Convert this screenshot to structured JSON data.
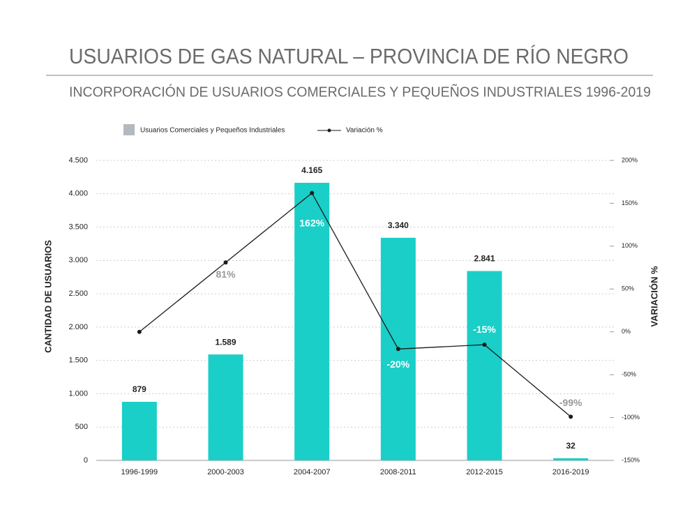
{
  "chart_data": {
    "type": "bar-line",
    "title": "USUARIOS DE GAS NATURAL  – PROVINCIA DE RÍO NEGRO",
    "subtitle": "INCORPORACIÓN DE USUARIOS COMERCIALES Y PEQUEÑOS INDUSTRIALES 1996-2019",
    "y_label": "CANTIDAD DE USUARIOS",
    "y2_label": "VARIACIÓN %",
    "categories": [
      "1996-1999",
      "2000-2003",
      "2004-2007",
      "2008-2011",
      "2012-2015",
      "2016-2019"
    ],
    "series": [
      {
        "name": "Usuarios Comerciales y Pequeños Industriales",
        "color": "#19cfc8",
        "legend_color": "#b4b9bf",
        "values": [
          879,
          1589,
          4165,
          3340,
          2841,
          32
        ],
        "value_labels": [
          "879",
          "1.589",
          "4.165",
          "3.340",
          "2.841",
          "32"
        ]
      },
      {
        "name": "Variación %",
        "color": "#1a1a1a",
        "axis": "y2",
        "values": [
          0,
          81,
          162,
          -20,
          -15,
          -99
        ],
        "value_labels": [
          null,
          "81%",
          "162%",
          "-20%",
          "-15%",
          "-99%"
        ]
      }
    ],
    "ylim": [
      0,
      4500
    ],
    "yticks": [
      0,
      500,
      {
        "value": 1000,
        "label": "1.000"
      },
      {
        "value": 1500,
        "label": "1.500"
      },
      {
        "value": 2000,
        "label": "2.000"
      },
      {
        "value": 2500,
        "label": "2.500"
      },
      {
        "value": 3000,
        "label": "3.000"
      },
      {
        "value": 3500,
        "label": "3.500"
      },
      {
        "value": 4000,
        "label": "4.000"
      },
      {
        "value": 4500,
        "label": "4.500"
      }
    ],
    "y2lim": [
      -150,
      200
    ],
    "y2ticks": [
      {
        "value": -150,
        "label": "-150%"
      },
      {
        "value": -100,
        "label": "-100%"
      },
      {
        "value": -50,
        "label": "-50%"
      },
      {
        "value": 0,
        "label": "0%"
      },
      {
        "value": 50,
        "label": "50%"
      },
      {
        "value": 100,
        "label": "100%"
      },
      {
        "value": 150,
        "label": "150%"
      },
      {
        "value": 200,
        "label": "200%"
      }
    ],
    "grid": true
  }
}
